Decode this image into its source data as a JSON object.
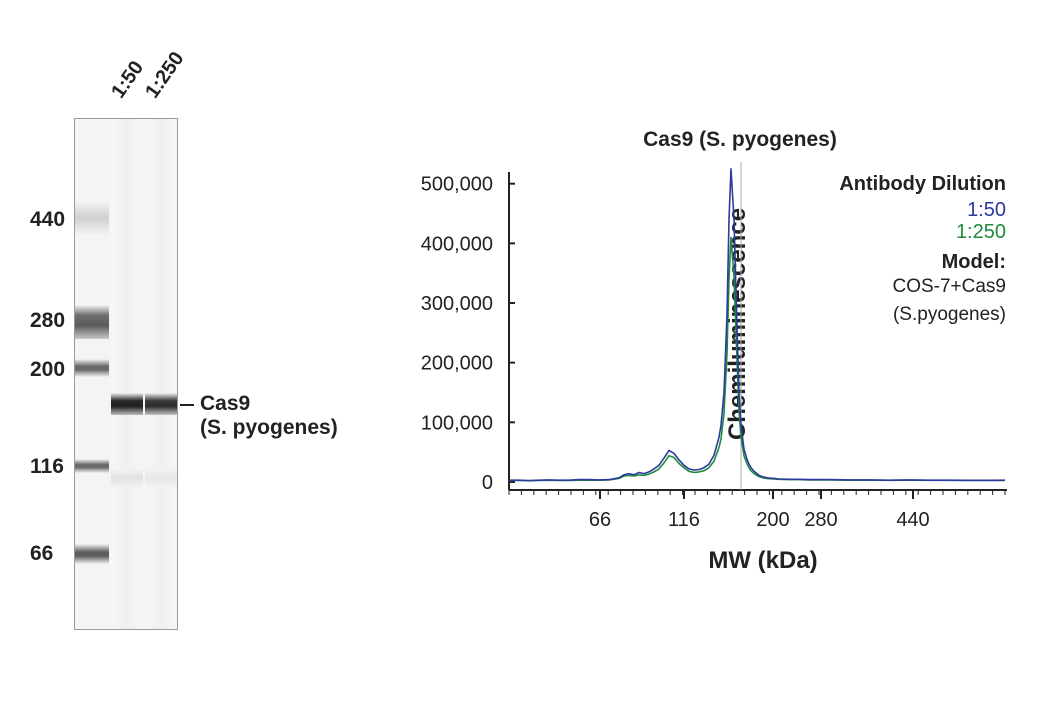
{
  "gel": {
    "lane_labels": [
      "1:50",
      "1:250"
    ],
    "markers": [
      "440",
      "280",
      "200",
      "116",
      "66"
    ],
    "band_label_line1": "Cas9",
    "band_label_line2": "(S. pyogenes)"
  },
  "chart_data": {
    "type": "line",
    "title": "Cas9 (S. pyogenes)",
    "xlabel": "MW (kDa)",
    "ylabel": "Chemiluminescence",
    "x_ticks": [
      "66",
      "116",
      "200",
      "280",
      "440"
    ],
    "y_ticks": [
      "0",
      "100,000",
      "200,000",
      "300,000",
      "400,000",
      "500,000"
    ],
    "ylim": [
      0,
      600000
    ],
    "grid": false,
    "legend_position": "top-right",
    "legend": {
      "title": "Antibody Dilution",
      "entries": [
        "1:50",
        "1:250"
      ],
      "model_label": "Model:",
      "model_lines": [
        "COS-7+Cas9",
        "(S.pyogenes)"
      ]
    },
    "series_colors": [
      "#2b3a9e",
      "#1f8a3c"
    ],
    "series": [
      {
        "name": "1:50",
        "x": [
          0,
          10,
          20,
          30,
          40,
          50,
          60,
          70,
          80,
          90,
          100,
          110,
          115,
          120,
          125,
          130,
          135,
          140,
          145,
          150,
          155,
          160,
          165,
          170,
          175,
          180,
          185,
          190,
          195,
          200,
          205,
          210,
          212,
          215,
          218,
          220,
          222,
          225,
          228,
          230,
          232,
          235,
          238,
          240,
          242,
          245,
          248,
          250,
          255,
          260,
          265,
          270,
          280,
          290,
          300,
          320,
          340,
          360,
          380,
          400,
          420,
          440,
          460,
          480,
          496
        ],
        "y": [
          3000,
          3000,
          2500,
          3000,
          3500,
          3000,
          3000,
          4000,
          4000,
          3500,
          4000,
          7000,
          12000,
          14000,
          12000,
          16000,
          14000,
          17000,
          22000,
          28000,
          40000,
          53000,
          48000,
          37000,
          28000,
          22000,
          20000,
          21000,
          24000,
          30000,
          45000,
          75000,
          95000,
          150000,
          280000,
          440000,
          525000,
          440000,
          260000,
          150000,
          95000,
          55000,
          38000,
          30000,
          24000,
          18000,
          14000,
          11000,
          8000,
          6500,
          6000,
          5000,
          4500,
          4500,
          4000,
          4000,
          3500,
          3500,
          3000,
          3500,
          3000,
          3000,
          2800,
          2800,
          3000
        ]
      },
      {
        "name": "1:250",
        "x": [
          0,
          10,
          20,
          30,
          40,
          50,
          60,
          70,
          80,
          90,
          100,
          110,
          115,
          120,
          125,
          130,
          135,
          140,
          145,
          150,
          155,
          160,
          165,
          170,
          175,
          180,
          185,
          190,
          195,
          200,
          205,
          210,
          212,
          215,
          218,
          220,
          222,
          225,
          228,
          230,
          232,
          235,
          238,
          240,
          242,
          245,
          248,
          250,
          255,
          260,
          265,
          270,
          280,
          290,
          300,
          320,
          340,
          360,
          380,
          400,
          420,
          440,
          460,
          480,
          496
        ],
        "y": [
          2500,
          2500,
          2000,
          2500,
          3000,
          2500,
          2500,
          3000,
          3000,
          3000,
          3500,
          6000,
          10000,
          11000,
          10000,
          12000,
          11000,
          13000,
          17000,
          22000,
          32000,
          44000,
          41000,
          31000,
          24000,
          18000,
          16000,
          17000,
          19000,
          24000,
          35000,
          58000,
          72000,
          115000,
          215000,
          340000,
          410000,
          345000,
          205000,
          120000,
          76000,
          44000,
          30000,
          24000,
          19000,
          14000,
          11000,
          9000,
          6500,
          5500,
          5000,
          4500,
          4000,
          4000,
          3500,
          3500,
          3000,
          3000,
          2800,
          3000,
          2800,
          2800,
          2500,
          2500,
          2500
        ]
      }
    ]
  }
}
